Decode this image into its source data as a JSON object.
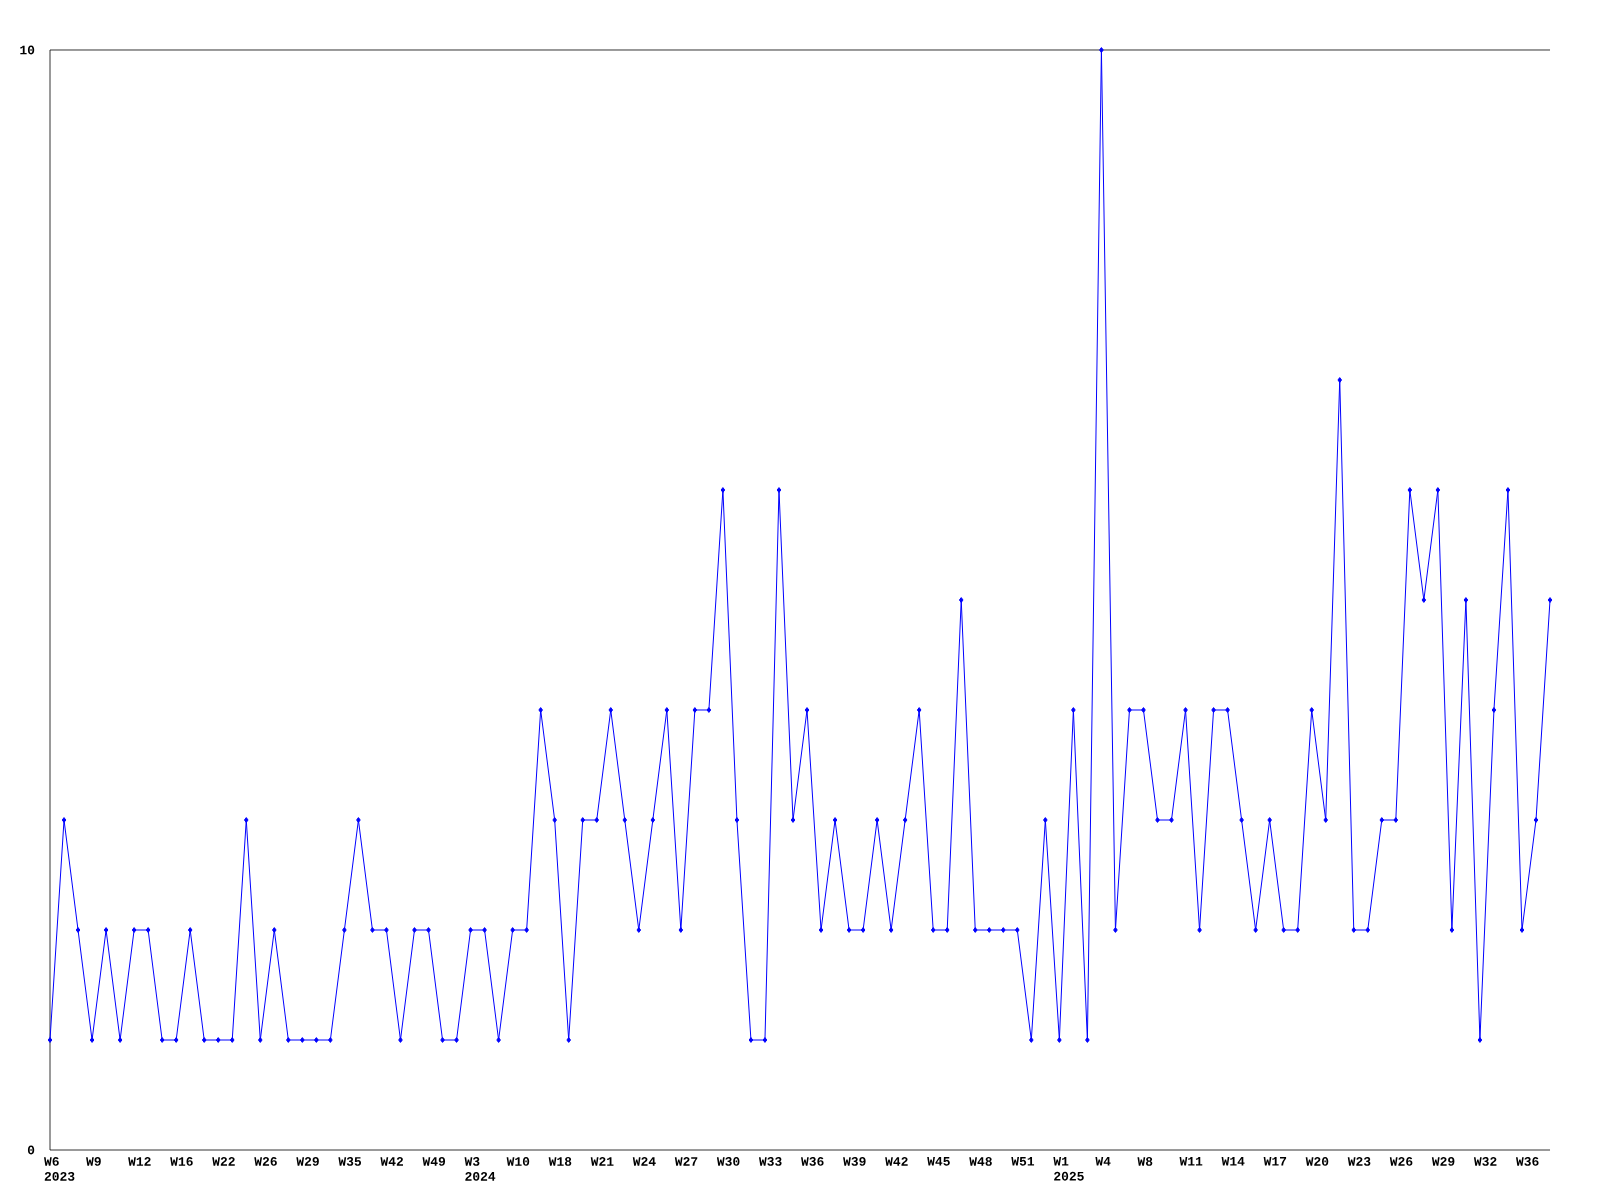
{
  "chart_data": {
    "type": "line",
    "categories": [
      "W6 2023",
      null,
      null,
      "W9",
      null,
      null,
      "W12",
      null,
      null,
      "W16",
      null,
      null,
      "W22",
      null,
      null,
      "W26",
      null,
      null,
      "W29",
      null,
      null,
      "W35",
      null,
      null,
      "W42",
      null,
      null,
      "W49",
      null,
      null,
      "W3 2024",
      null,
      null,
      "W10",
      null,
      null,
      "W18",
      null,
      null,
      "W21",
      null,
      null,
      "W24",
      null,
      null,
      "W27",
      null,
      null,
      "W30",
      null,
      null,
      "W33",
      null,
      null,
      "W36",
      null,
      null,
      "W39",
      null,
      null,
      "W42",
      null,
      null,
      "W45",
      null,
      null,
      "W48",
      null,
      null,
      "W51",
      null,
      null,
      "W1 2025",
      null,
      null,
      "W4",
      null,
      null,
      "W8",
      null,
      null,
      "W11",
      null,
      null,
      "W14",
      null,
      null,
      "W17",
      null,
      null,
      "W20",
      null,
      null,
      "W23",
      null,
      null,
      "W26",
      null,
      null,
      "W29",
      null,
      null,
      "W32",
      null,
      null,
      "W36",
      null,
      null
    ],
    "values": [
      1,
      3,
      2,
      1,
      2,
      1,
      2,
      2,
      1,
      1,
      2,
      1,
      1,
      1,
      3,
      1,
      2,
      1,
      1,
      1,
      1,
      2,
      3,
      2,
      2,
      1,
      2,
      2,
      1,
      1,
      2,
      2,
      1,
      2,
      2,
      4,
      3,
      1,
      3,
      3,
      4,
      3,
      2,
      3,
      4,
      2,
      4,
      4,
      6,
      3,
      1,
      1,
      6,
      3,
      4,
      2,
      3,
      2,
      2,
      3,
      2,
      3,
      4,
      2,
      2,
      5,
      2,
      2,
      2,
      2,
      1,
      3,
      1,
      4,
      1,
      10,
      2,
      4,
      4,
      3,
      3,
      4,
      2,
      4,
      4,
      3,
      2,
      3,
      2,
      2,
      4,
      3,
      7,
      2,
      2,
      3,
      3,
      6,
      5,
      6,
      2,
      5,
      1,
      4,
      6,
      2,
      3,
      5
    ],
    "color": "#0000ff",
    "marker": "diamond",
    "ylim": [
      0,
      10
    ],
    "yticks": [
      0,
      10
    ]
  }
}
